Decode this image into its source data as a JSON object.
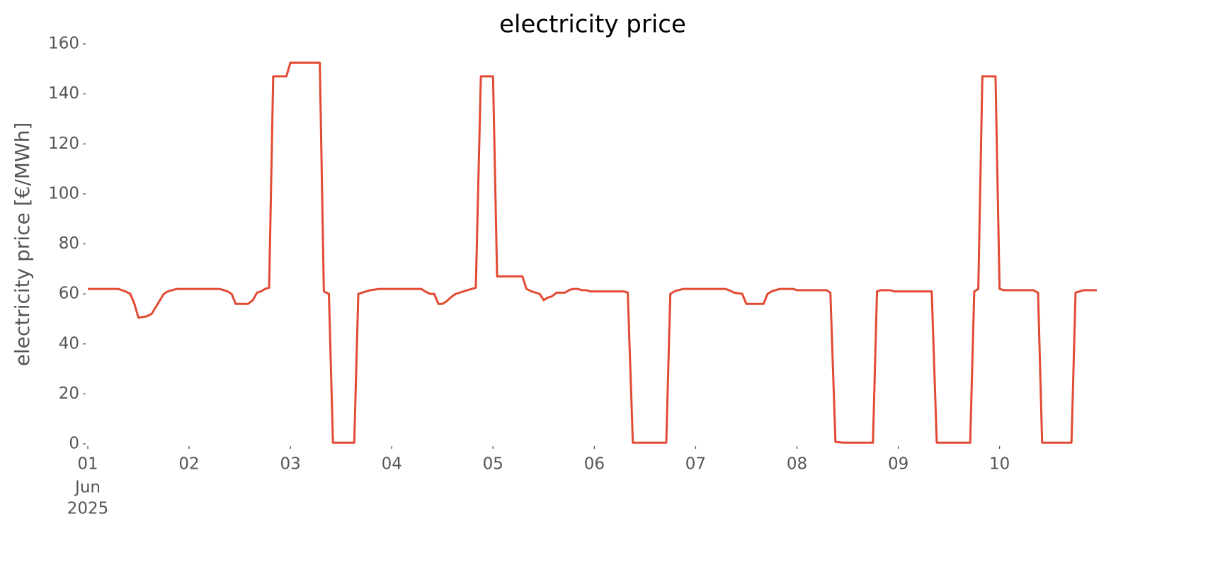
{
  "chart_data": {
    "type": "line",
    "title": "electricity price",
    "y_label": "electricity price [€/MWh]",
    "x": [
      0,
      0.3,
      0.37,
      0.42,
      0.46,
      0.5,
      0.58,
      0.63,
      0.75,
      0.79,
      0.88,
      1.3,
      1.38,
      1.42,
      1.46,
      1.58,
      1.63,
      1.67,
      1.71,
      1.75,
      1.79,
      1.83,
      1.96,
      2.0,
      2.29,
      2.33,
      2.38,
      2.42,
      2.63,
      2.67,
      2.71,
      2.79,
      2.88,
      3.29,
      3.33,
      3.38,
      3.42,
      3.46,
      3.5,
      3.54,
      3.58,
      3.63,
      3.71,
      3.79,
      3.83,
      3.88,
      4.0,
      4.04,
      4.29,
      4.33,
      4.38,
      4.42,
      4.46,
      4.5,
      4.54,
      4.58,
      4.63,
      4.71,
      4.75,
      4.79,
      4.83,
      4.88,
      4.92,
      4.96,
      5.29,
      5.33,
      5.38,
      5.71,
      5.75,
      5.79,
      5.83,
      5.88,
      6.29,
      6.33,
      6.38,
      6.46,
      6.5,
      6.67,
      6.71,
      6.75,
      6.83,
      6.96,
      7.0,
      7.29,
      7.33,
      7.38,
      7.46,
      7.75,
      7.79,
      7.83,
      7.92,
      7.96,
      8.33,
      8.38,
      8.71,
      8.75,
      8.79,
      8.83,
      8.96,
      9.0,
      9.04,
      9.33,
      9.38,
      9.42,
      9.71,
      9.75,
      9.83,
      9.96
    ],
    "series": [
      {
        "name": "electricity price",
        "color": "#E24A33",
        "values": [
          62,
          62,
          61,
          60,
          56,
          50.5,
          51,
          52,
          60,
          61,
          62,
          62,
          61,
          60,
          56,
          56,
          57.5,
          60.5,
          61,
          62,
          62.5,
          147,
          147,
          152.5,
          152.5,
          61,
          60,
          0.5,
          0.5,
          60,
          60.5,
          61.5,
          62,
          62,
          61,
          60,
          60,
          56,
          56,
          57,
          58.5,
          60,
          61,
          62,
          62.5,
          147,
          147,
          67,
          67,
          62,
          61,
          60.5,
          60,
          57.5,
          58.5,
          59,
          60.5,
          60.5,
          61.5,
          62,
          62,
          61.5,
          61.5,
          61,
          61,
          60.5,
          0.5,
          0.5,
          60,
          61,
          61.5,
          62,
          62,
          61.5,
          60.5,
          60,
          56,
          56,
          60,
          61,
          62,
          62,
          61.5,
          61.5,
          60.5,
          0.8,
          0.5,
          0.5,
          61,
          61.5,
          61.5,
          61,
          61,
          0.5,
          0.5,
          61,
          62,
          147,
          147,
          62,
          61.5,
          61.5,
          60.5,
          0.5,
          0.5,
          60.5,
          61.5,
          61.5
        ]
      }
    ],
    "xlim": [
      0,
      9.96
    ],
    "xticks": [
      {
        "value": 0,
        "label": "01"
      },
      {
        "value": 1,
        "label": "02"
      },
      {
        "value": 2,
        "label": "03"
      },
      {
        "value": 3,
        "label": "04"
      },
      {
        "value": 4,
        "label": "05"
      },
      {
        "value": 5,
        "label": "06"
      },
      {
        "value": 6,
        "label": "07"
      },
      {
        "value": 7,
        "label": "08"
      },
      {
        "value": 8,
        "label": "09"
      },
      {
        "value": 9,
        "label": "10"
      }
    ],
    "x_first_tick_sublabels": [
      "Jun",
      "2025"
    ],
    "ylim": [
      0,
      160
    ],
    "yticks": [
      0,
      20,
      40,
      60,
      80,
      100,
      120,
      140,
      160
    ],
    "grid": false
  }
}
